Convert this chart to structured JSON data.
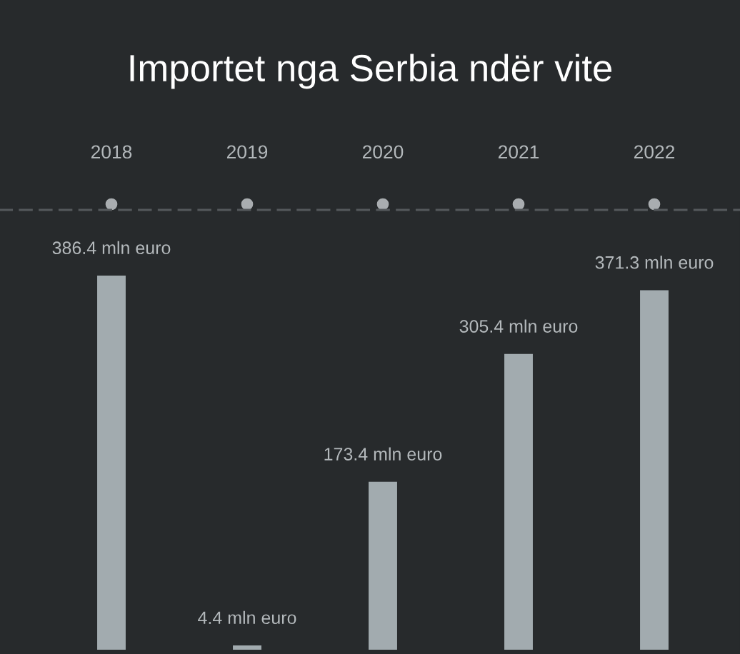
{
  "chart_data": {
    "type": "bar",
    "title": "Importet nga Serbia ndër vite",
    "categories": [
      "2018",
      "2019",
      "2020",
      "2021",
      "2022"
    ],
    "values": [
      386.4,
      4.4,
      173.4,
      305.4,
      371.3
    ],
    "value_labels": [
      "386.4 mln euro",
      "4.4 mln euro",
      "173.4 mln euro",
      "305.4 mln euro",
      "371.3 mln euro"
    ],
    "color": "#a2abaf",
    "tick_labels": "x"
  }
}
